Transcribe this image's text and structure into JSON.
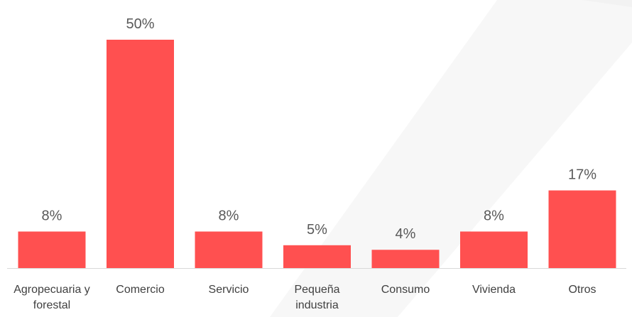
{
  "chart_data": {
    "type": "bar",
    "categories": [
      "Agropecuaria y forestal",
      "Comercio",
      "Servicio",
      "Pequeña industria",
      "Consumo",
      "Vivienda",
      "Otros"
    ],
    "values": [
      8,
      50,
      8,
      5,
      4,
      8,
      17
    ],
    "value_labels": [
      "8%",
      "50%",
      "8%",
      "5%",
      "4%",
      "8%",
      "17%"
    ],
    "color": "#ff5050"
  }
}
